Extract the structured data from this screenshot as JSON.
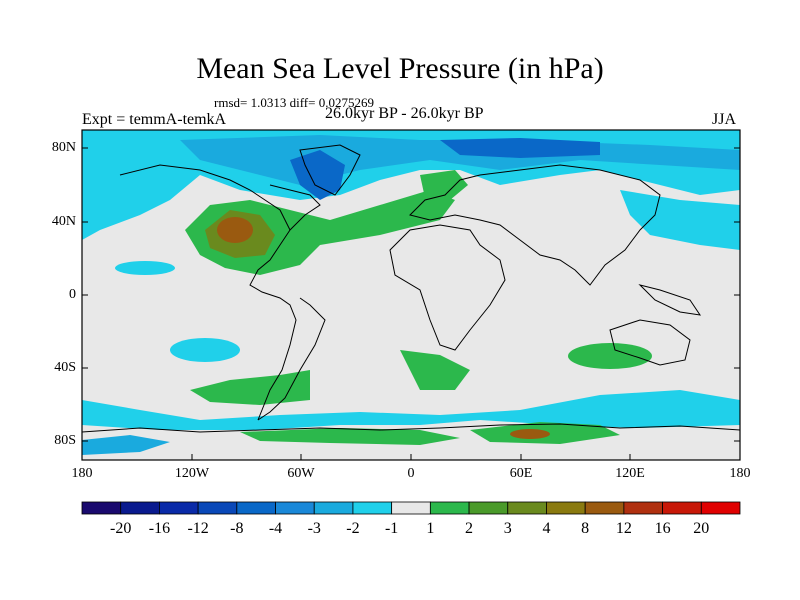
{
  "title": "Mean Sea Level Pressure (in hPa)",
  "stats": "rmsd= 1.0313 diff= 0.0275269",
  "experiment": "Expt = temmA-temkA",
  "period": "26.0kyr BP - 26.0kyr BP",
  "season": "JJA",
  "lat_labels": [
    "80N",
    "40N",
    "0",
    "40S",
    "80S"
  ],
  "lon_labels": [
    "180",
    "120W",
    "60W",
    "0",
    "60E",
    "120E",
    "180"
  ],
  "colorbar": {
    "labels": [
      "-20",
      "-16",
      "-12",
      "-8",
      "-4",
      "-3",
      "-2",
      "-1",
      "1",
      "2",
      "3",
      "4",
      "8",
      "12",
      "16",
      "20"
    ],
    "colors": [
      "#1a0a6e",
      "#0a1a8e",
      "#0a2aa8",
      "#0a48b8",
      "#0a68c8",
      "#1a88d8",
      "#1aaade",
      "#20d0ea",
      "#e8e8e8",
      "#2cb84c",
      "#4a9a2a",
      "#6a8a1e",
      "#8a7a10",
      "#9a5a10",
      "#b03010",
      "#c81808",
      "#e00000"
    ]
  },
  "palette": {
    "ocean_neutral": "#e8e8e8",
    "neg_light": "#20d0ea",
    "neg_mid": "#1aaade",
    "neg_dark": "#0a68c8",
    "pos_light": "#2cb84c",
    "pos_mid": "#6a8a1e",
    "pos_dark": "#9a5a10"
  }
}
